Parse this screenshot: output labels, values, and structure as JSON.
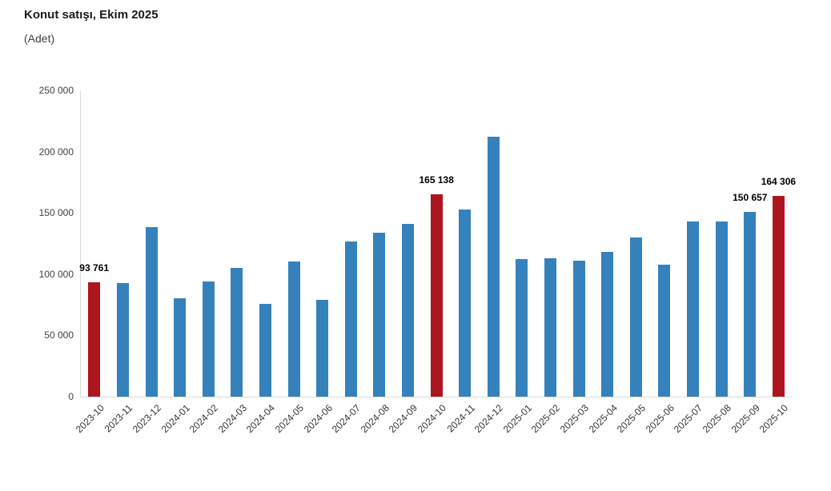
{
  "title": "Konut satışı, Ekim 2025",
  "subtitle": "(Adet)",
  "colors": {
    "bar_default": "#3581bc",
    "bar_highlight": "#ad161e",
    "axis_line": "#d9d9d9",
    "title_text": "#1a1a1a",
    "axis_text": "#404040",
    "label_text": "#000000",
    "background": "#ffffff"
  },
  "chart_data": {
    "type": "bar",
    "title": "Konut satışı, Ekim 2025",
    "subtitle": "(Adet)",
    "xlabel": "",
    "ylabel": "Adet",
    "ylim": [
      0,
      250000
    ],
    "ytick_step": 50000,
    "ytick_labels": [
      "0",
      "50 000",
      "100 000",
      "150 000",
      "200 000",
      "250 000"
    ],
    "grid": false,
    "legend": "none",
    "categories": [
      "2023-10",
      "2023-11",
      "2023-12",
      "2024-01",
      "2024-02",
      "2024-03",
      "2024-04",
      "2024-05",
      "2024-06",
      "2024-07",
      "2024-08",
      "2024-09",
      "2024-10",
      "2024-11",
      "2024-12",
      "2025-01",
      "2025-02",
      "2025-03",
      "2025-04",
      "2025-05",
      "2025-06",
      "2025-07",
      "2025-08",
      "2025-09",
      "2025-10"
    ],
    "values": [
      93761,
      93010,
      138577,
      80308,
      93902,
      105476,
      75569,
      110588,
      79313,
      127088,
      134155,
      140919,
      165138,
      153014,
      212637,
      112173,
      112818,
      110795,
      118359,
      130025,
      107723,
      142858,
      143319,
      150657,
      164306
    ],
    "highlight_indices": [
      0,
      12,
      24
    ],
    "annotations": [
      {
        "index": 0,
        "text": "93 761"
      },
      {
        "index": 12,
        "text": "165 138"
      },
      {
        "index": 23,
        "text": "150 657"
      },
      {
        "index": 24,
        "text": "164 306"
      }
    ]
  }
}
